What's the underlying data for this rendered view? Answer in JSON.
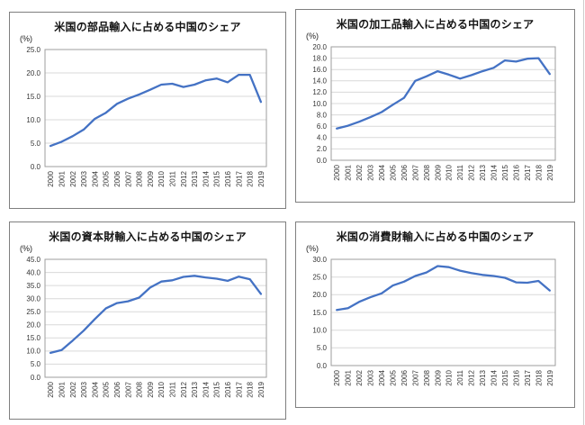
{
  "colors": {
    "line": "#4472C4",
    "gridline": "#D9D9D9",
    "plot_border": "#9E9E9E",
    "panel_border": "#7F7F7F",
    "title_text": "#141414",
    "tick_text": "#353535"
  },
  "chart_data": [
    {
      "type": "line",
      "title": "米国の部品輸入に占める中国のシェア",
      "unit_label": "(%)",
      "legend": "none",
      "grid": true,
      "categories": [
        "2000",
        "2001",
        "2002",
        "2003",
        "2004",
        "2005",
        "2006",
        "2007",
        "2008",
        "2009",
        "2010",
        "2011",
        "2012",
        "2013",
        "2014",
        "2015",
        "2016",
        "2017",
        "2018",
        "2019"
      ],
      "values": [
        4.4,
        5.3,
        6.5,
        7.9,
        10.2,
        11.5,
        13.4,
        14.5,
        15.4,
        16.4,
        17.5,
        17.7,
        17.0,
        17.5,
        18.4,
        18.8,
        18.0,
        19.6,
        19.6,
        13.8
      ],
      "ylim": [
        0,
        25
      ],
      "ytick_labels": [
        "0.0",
        "5.0",
        "10.0",
        "15.0",
        "20.0",
        "25.0"
      ],
      "line_color": "#4472C4"
    },
    {
      "type": "line",
      "title": "米国の加工品輸入に占める中国のシェア",
      "unit_label": "(%)",
      "legend": "none",
      "grid": true,
      "categories": [
        "2000",
        "2001",
        "2002",
        "2003",
        "2004",
        "2005",
        "2006",
        "2007",
        "2008",
        "2009",
        "2010",
        "2011",
        "2012",
        "2013",
        "2014",
        "2015",
        "2016",
        "2017",
        "2018",
        "2019"
      ],
      "values": [
        5.6,
        6.1,
        6.8,
        7.6,
        8.5,
        9.8,
        11.0,
        14.0,
        14.8,
        15.7,
        15.1,
        14.4,
        15.0,
        15.7,
        16.3,
        17.6,
        17.4,
        17.9,
        18.0,
        15.2
      ],
      "ylim": [
        0,
        20
      ],
      "ytick_labels": [
        "0.0",
        "2.0",
        "4.0",
        "6.0",
        "8.0",
        "10.0",
        "12.0",
        "14.0",
        "16.0",
        "18.0",
        "20.0"
      ],
      "line_color": "#4472C4"
    },
    {
      "type": "line",
      "title": "米国の資本財輸入に占める中国のシェア",
      "unit_label": "(%)",
      "legend": "none",
      "grid": true,
      "categories": [
        "2000",
        "2001",
        "2002",
        "2003",
        "2004",
        "2005",
        "2006",
        "2007",
        "2008",
        "2009",
        "2010",
        "2011",
        "2012",
        "2013",
        "2014",
        "2015",
        "2016",
        "2017",
        "2018",
        "2019"
      ],
      "values": [
        9.3,
        10.4,
        14.0,
        17.8,
        22.2,
        26.3,
        28.3,
        29.0,
        30.4,
        34.2,
        36.5,
        37.0,
        38.3,
        38.7,
        38.1,
        37.6,
        36.8,
        38.4,
        37.4,
        31.8
      ],
      "ylim": [
        0,
        45
      ],
      "ytick_labels": [
        "0.0",
        "5.0",
        "10.0",
        "15.0",
        "20.0",
        "25.0",
        "30.0",
        "35.0",
        "40.0",
        "45.0"
      ],
      "line_color": "#4472C4"
    },
    {
      "type": "line",
      "title": "米国の消費財輸入に占める中国のシェア",
      "unit_label": "(%)",
      "legend": "none",
      "grid": true,
      "categories": [
        "2000",
        "2001",
        "2002",
        "2003",
        "2004",
        "2005",
        "2006",
        "2007",
        "2008",
        "2009",
        "2010",
        "2011",
        "2012",
        "2013",
        "2014",
        "2015",
        "2016",
        "2017",
        "2018",
        "2019"
      ],
      "values": [
        15.7,
        16.2,
        18.0,
        19.3,
        20.4,
        22.6,
        23.7,
        25.3,
        26.3,
        28.1,
        27.8,
        26.8,
        26.1,
        25.6,
        25.3,
        24.8,
        23.5,
        23.4,
        23.9,
        21.2
      ],
      "ylim": [
        0,
        30
      ],
      "ytick_labels": [
        "0.0",
        "5.0",
        "10.0",
        "15.0",
        "20.0",
        "25.0",
        "30.0"
      ],
      "line_color": "#4472C4"
    }
  ]
}
